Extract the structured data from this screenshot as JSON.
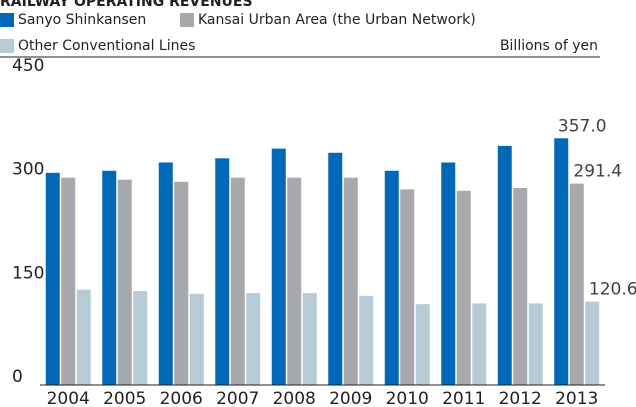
{
  "chart_data": {
    "type": "bar",
    "title": "RAILWAY OPERATING REVENUES",
    "y_label": "Billions of yen",
    "categories": [
      "2004",
      "2005",
      "2006",
      "2007",
      "2008",
      "2009",
      "2010",
      "2011",
      "2012",
      "2013"
    ],
    "series": [
      {
        "name": "Sanyo Shinkansen",
        "color": "#0068b7",
        "values": [
          307,
          310,
          322,
          328,
          342,
          336,
          310,
          322,
          346,
          357
        ],
        "value_labels": [
          null,
          null,
          null,
          null,
          null,
          null,
          null,
          null,
          null,
          "357.0"
        ]
      },
      {
        "name": "Kansai Urban Area (the Urban Network)",
        "color": "#a7a9ac",
        "values": [
          300,
          297,
          294,
          300,
          300,
          300,
          283,
          281,
          285,
          291.4
        ],
        "value_labels": [
          null,
          null,
          null,
          null,
          null,
          null,
          null,
          null,
          null,
          "291.4"
        ]
      },
      {
        "name": "Other Conventional Lines",
        "color": "#b7cbd6",
        "values": [
          138,
          136,
          132,
          133,
          133,
          129,
          117,
          118,
          118,
          120.6
        ],
        "value_labels": [
          null,
          null,
          null,
          null,
          null,
          null,
          null,
          null,
          null,
          "120.6"
        ]
      }
    ],
    "ylim": [
      0,
      450
    ],
    "yticks": [
      0,
      150,
      300,
      450
    ],
    "grid": false
  }
}
